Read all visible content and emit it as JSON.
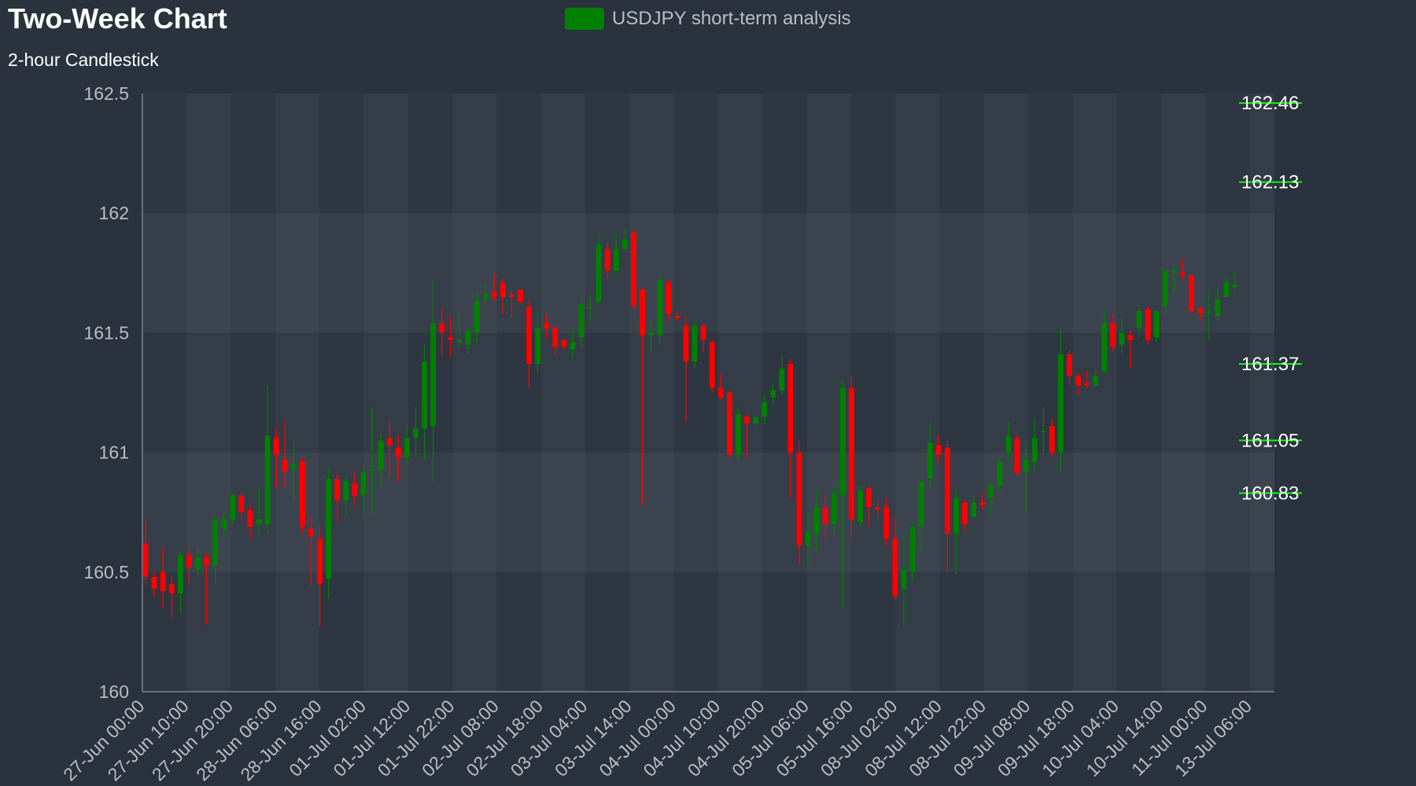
{
  "chart_data": {
    "type": "candlestick",
    "title": "Two-Week Chart",
    "subtitle": "2-hour Candlestick",
    "legend": {
      "label": "USDJPY short-term analysis",
      "color": "#008000",
      "position": "top-center"
    },
    "ylim": [
      160,
      162.5
    ],
    "yticks": [
      "160",
      "160.5",
      "161",
      "161.5",
      "162",
      "162.5"
    ],
    "xticks": [
      "27-Jun 00:00",
      "27-Jun 10:00",
      "27-Jun 20:00",
      "28-Jun 06:00",
      "28-Jun 16:00",
      "01-Jul 02:00",
      "01-Jul 12:00",
      "01-Jul 22:00",
      "02-Jul 08:00",
      "02-Jul 18:00",
      "03-Jul 04:00",
      "03-Jul 14:00",
      "04-Jul 00:00",
      "04-Jul 10:00",
      "04-Jul 20:00",
      "05-Jul 06:00",
      "05-Jul 16:00",
      "08-Jul 02:00",
      "08-Jul 12:00",
      "08-Jul 22:00",
      "09-Jul 08:00",
      "09-Jul 18:00",
      "10-Jul 04:00",
      "10-Jul 14:00",
      "11-Jul 00:00",
      "13-Jul 06:00"
    ],
    "up_color": "#008000",
    "down_color": "#ff0000",
    "levels": [
      "162.46",
      "162.13",
      "161.37",
      "161.05",
      "160.83"
    ],
    "level_color": "#00ff00",
    "grid": true,
    "candles": [
      [
        160.62,
        160.48,
        160.72,
        160.45
      ],
      [
        160.48,
        160.43,
        160.5,
        160.4
      ],
      [
        160.5,
        160.42,
        160.6,
        160.35
      ],
      [
        160.45,
        160.41,
        160.48,
        160.31
      ],
      [
        160.41,
        160.57,
        160.59,
        160.33
      ],
      [
        160.57,
        160.52,
        160.6,
        160.45
      ],
      [
        160.51,
        160.56,
        160.6,
        160.48
      ],
      [
        160.56,
        160.53,
        160.58,
        160.28
      ],
      [
        160.53,
        160.72,
        160.74,
        160.45
      ],
      [
        160.68,
        160.72,
        160.75,
        160.65
      ],
      [
        160.72,
        160.82,
        160.83,
        160.7
      ],
      [
        160.82,
        160.75,
        160.83,
        160.72
      ],
      [
        160.76,
        160.69,
        160.78,
        160.64
      ],
      [
        160.7,
        160.72,
        160.85,
        160.66
      ],
      [
        160.7,
        161.07,
        161.28,
        160.66
      ],
      [
        161.06,
        160.99,
        161.1,
        160.85
      ],
      [
        160.97,
        160.92,
        161.13,
        160.85
      ],
      [
        160.93,
        160.95,
        161.05,
        160.8
      ],
      [
        160.96,
        160.69,
        160.98,
        160.66
      ],
      [
        160.68,
        160.65,
        160.74,
        160.44
      ],
      [
        160.64,
        160.45,
        160.69,
        160.27
      ],
      [
        160.47,
        160.89,
        160.94,
        160.39
      ],
      [
        160.89,
        160.8,
        160.92,
        160.71
      ],
      [
        160.8,
        160.88,
        160.9,
        160.74
      ],
      [
        160.87,
        160.82,
        160.92,
        160.78
      ],
      [
        160.82,
        160.92,
        160.95,
        160.73
      ],
      [
        160.93,
        160.93,
        161.19,
        160.74
      ],
      [
        160.93,
        161.05,
        161.08,
        160.85
      ],
      [
        161.06,
        161.03,
        161.13,
        160.9
      ],
      [
        161.02,
        160.98,
        161.07,
        160.88
      ],
      [
        160.98,
        161.06,
        161.12,
        160.94
      ],
      [
        161.06,
        161.1,
        161.19,
        160.98
      ],
      [
        161.1,
        161.38,
        161.45,
        160.97
      ],
      [
        161.11,
        161.54,
        161.72,
        160.88
      ],
      [
        161.54,
        161.5,
        161.6,
        161.41
      ],
      [
        161.48,
        161.47,
        161.57,
        161.4
      ],
      [
        161.46,
        161.47,
        161.59,
        161.44
      ],
      [
        161.45,
        161.51,
        161.52,
        161.41
      ],
      [
        161.5,
        161.63,
        161.67,
        161.46
      ],
      [
        161.64,
        161.66,
        161.7,
        161.61
      ],
      [
        161.67,
        161.65,
        161.75,
        161.63
      ],
      [
        161.71,
        161.65,
        161.73,
        161.58
      ],
      [
        161.66,
        161.65,
        161.68,
        161.56
      ],
      [
        161.68,
        161.63,
        161.68,
        161.62
      ],
      [
        161.61,
        161.37,
        161.64,
        161.27
      ],
      [
        161.37,
        161.52,
        161.59,
        161.33
      ],
      [
        161.54,
        161.52,
        161.58,
        161.48
      ],
      [
        161.52,
        161.44,
        161.53,
        161.4
      ],
      [
        161.47,
        161.44,
        161.45,
        161.43
      ],
      [
        161.43,
        161.46,
        161.51,
        161.39
      ],
      [
        161.48,
        161.62,
        161.65,
        161.44
      ],
      [
        161.61,
        161.61,
        161.66,
        161.54
      ],
      [
        161.63,
        161.87,
        161.91,
        161.62
      ],
      [
        161.85,
        161.76,
        161.88,
        161.73
      ],
      [
        161.76,
        161.85,
        161.91,
        161.74
      ],
      [
        161.85,
        161.89,
        161.94,
        161.85
      ],
      [
        161.92,
        161.61,
        161.93,
        161.58
      ],
      [
        161.68,
        161.49,
        161.69,
        160.78
      ],
      [
        161.49,
        161.5,
        161.55,
        161.42
      ],
      [
        161.49,
        161.72,
        161.74,
        161.45
      ],
      [
        161.71,
        161.58,
        161.72,
        161.55
      ],
      [
        161.57,
        161.56,
        161.59,
        161.55
      ],
      [
        161.53,
        161.38,
        161.57,
        161.13
      ],
      [
        161.38,
        161.53,
        161.55,
        161.35
      ],
      [
        161.53,
        161.47,
        161.54,
        161.42
      ],
      [
        161.46,
        161.27,
        161.47,
        161.25
      ],
      [
        161.27,
        161.23,
        161.33,
        161.22
      ],
      [
        161.25,
        160.99,
        161.26,
        160.97
      ],
      [
        160.99,
        161.16,
        161.19,
        160.97
      ],
      [
        161.15,
        161.12,
        161.16,
        160.98
      ],
      [
        161.12,
        161.15,
        161.15,
        161.11
      ],
      [
        161.15,
        161.21,
        161.24,
        161.12
      ],
      [
        161.23,
        161.26,
        161.29,
        161.2
      ],
      [
        161.26,
        161.35,
        161.4,
        161.24
      ],
      [
        161.37,
        161.0,
        161.39,
        160.81
      ],
      [
        161.0,
        160.61,
        161.05,
        160.53
      ],
      [
        160.61,
        160.67,
        160.75,
        160.53
      ],
      [
        160.66,
        160.77,
        160.84,
        160.58
      ],
      [
        160.77,
        160.7,
        160.82,
        160.63
      ],
      [
        160.7,
        160.83,
        160.86,
        160.66
      ],
      [
        160.82,
        161.27,
        161.3,
        160.35
      ],
      [
        161.27,
        160.72,
        161.32,
        160.63
      ],
      [
        160.71,
        160.84,
        160.86,
        160.69
      ],
      [
        160.85,
        160.77,
        160.86,
        160.69
      ],
      [
        160.77,
        160.76,
        160.8,
        160.72
      ],
      [
        160.77,
        160.64,
        160.81,
        160.61
      ],
      [
        160.64,
        160.4,
        160.73,
        160.38
      ],
      [
        160.43,
        160.51,
        160.66,
        160.27
      ],
      [
        160.5,
        160.69,
        160.7,
        160.47
      ],
      [
        160.69,
        160.88,
        160.9,
        160.58
      ],
      [
        160.89,
        161.04,
        161.13,
        160.85
      ],
      [
        161.03,
        160.99,
        161.07,
        160.96
      ],
      [
        161.02,
        160.66,
        161.05,
        160.5
      ],
      [
        160.66,
        160.81,
        160.84,
        160.49
      ],
      [
        160.79,
        160.7,
        160.8,
        160.67
      ],
      [
        160.73,
        160.79,
        160.82,
        160.74
      ],
      [
        160.79,
        160.78,
        160.83,
        160.76
      ],
      [
        160.81,
        160.86,
        160.88,
        160.74
      ],
      [
        160.86,
        160.96,
        160.98,
        160.83
      ],
      [
        161.0,
        161.07,
        161.13,
        160.96
      ],
      [
        161.06,
        160.91,
        161.08,
        160.92
      ],
      [
        160.92,
        160.97,
        161.04,
        160.75
      ],
      [
        160.96,
        161.06,
        161.14,
        160.92
      ],
      [
        161.09,
        161.09,
        161.19,
        161.0
      ],
      [
        161.11,
        161.0,
        161.14,
        160.98
      ],
      [
        161.0,
        161.41,
        161.52,
        160.92
      ],
      [
        161.41,
        161.32,
        161.43,
        161.28
      ],
      [
        161.32,
        161.28,
        161.33,
        161.24
      ],
      [
        161.29,
        161.28,
        161.34,
        161.27
      ],
      [
        161.28,
        161.32,
        161.35,
        161.27
      ],
      [
        161.34,
        161.54,
        161.6,
        161.33
      ],
      [
        161.54,
        161.44,
        161.58,
        161.42
      ],
      [
        161.45,
        161.5,
        161.56,
        161.41
      ],
      [
        161.49,
        161.47,
        161.51,
        161.35
      ],
      [
        161.52,
        161.59,
        161.62,
        161.48
      ],
      [
        161.6,
        161.47,
        161.61,
        161.45
      ],
      [
        161.48,
        161.59,
        161.6,
        161.46
      ],
      [
        161.61,
        161.76,
        161.77,
        161.58
      ],
      [
        161.75,
        161.76,
        161.78,
        161.67
      ],
      [
        161.75,
        161.74,
        161.81,
        161.72
      ],
      [
        161.74,
        161.59,
        161.75,
        161.59
      ],
      [
        161.6,
        161.58,
        161.61,
        161.55
      ],
      [
        161.59,
        161.59,
        161.68,
        161.47
      ],
      [
        161.57,
        161.64,
        161.69,
        161.55
      ],
      [
        161.65,
        161.71,
        161.74,
        161.65
      ],
      [
        161.69,
        161.7,
        161.76,
        161.68
      ]
    ]
  }
}
